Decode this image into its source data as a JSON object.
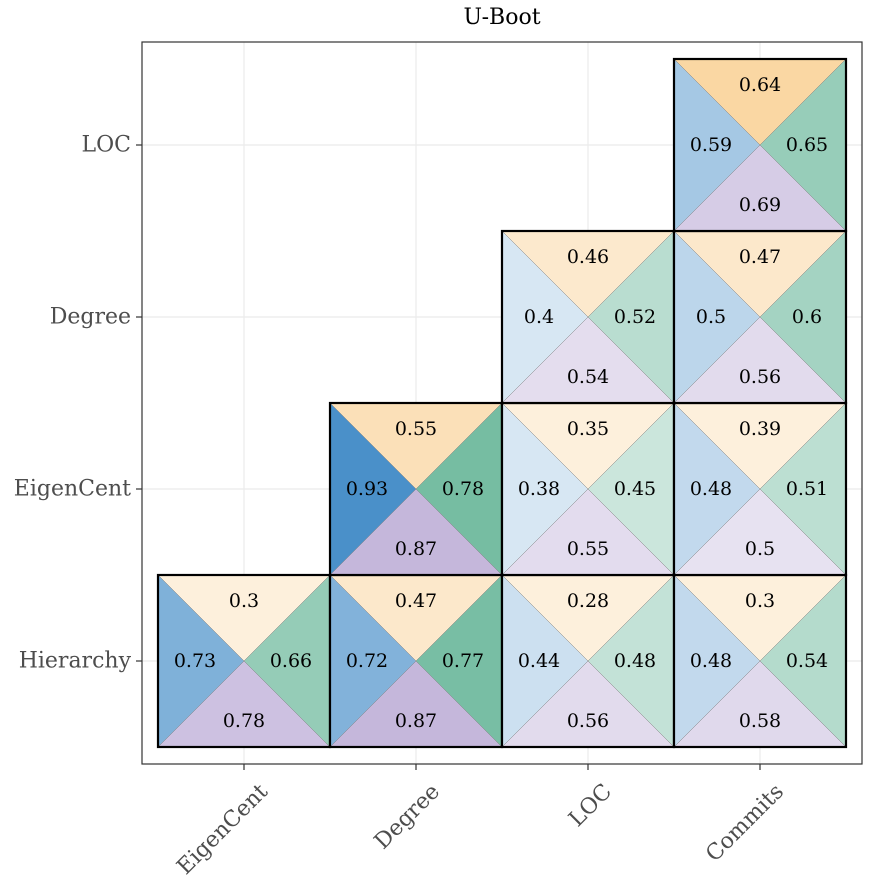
{
  "chart_data": {
    "type": "heatmap",
    "title": "U-Boot",
    "x_categories": [
      "EigenCent",
      "Degree",
      "LOC",
      "Commits"
    ],
    "y_categories": [
      "Hierarchy",
      "EigenCent",
      "Degree",
      "LOC"
    ],
    "colors": {
      "left": "#4a90c9",
      "top": "#f6b95e",
      "right": "#4faa88",
      "bottom": "#bfb0d8"
    },
    "cells": [
      {
        "x": "EigenCent",
        "y": "Hierarchy",
        "top": 0.3,
        "left": 0.73,
        "right": 0.66,
        "bottom": 0.78
      },
      {
        "x": "Degree",
        "y": "Hierarchy",
        "top": 0.47,
        "left": 0.72,
        "right": 0.77,
        "bottom": 0.87
      },
      {
        "x": "LOC",
        "y": "Hierarchy",
        "top": 0.28,
        "left": 0.44,
        "right": 0.48,
        "bottom": 0.56
      },
      {
        "x": "Commits",
        "y": "Hierarchy",
        "top": 0.3,
        "left": 0.48,
        "right": 0.54,
        "bottom": 0.58
      },
      {
        "x": "Degree",
        "y": "EigenCent",
        "top": 0.55,
        "left": 0.93,
        "right": 0.78,
        "bottom": 0.87
      },
      {
        "x": "LOC",
        "y": "EigenCent",
        "top": 0.35,
        "left": 0.38,
        "right": 0.45,
        "bottom": 0.55
      },
      {
        "x": "Commits",
        "y": "EigenCent",
        "top": 0.39,
        "left": 0.48,
        "right": 0.51,
        "bottom": 0.5
      },
      {
        "x": "LOC",
        "y": "Degree",
        "top": 0.46,
        "left": 0.4,
        "right": 0.52,
        "bottom": 0.54
      },
      {
        "x": "Commits",
        "y": "Degree",
        "top": 0.47,
        "left": 0.5,
        "right": 0.6,
        "bottom": 0.56
      },
      {
        "x": "Commits",
        "y": "LOC",
        "top": 0.64,
        "left": 0.59,
        "right": 0.65,
        "bottom": 0.69
      }
    ]
  }
}
